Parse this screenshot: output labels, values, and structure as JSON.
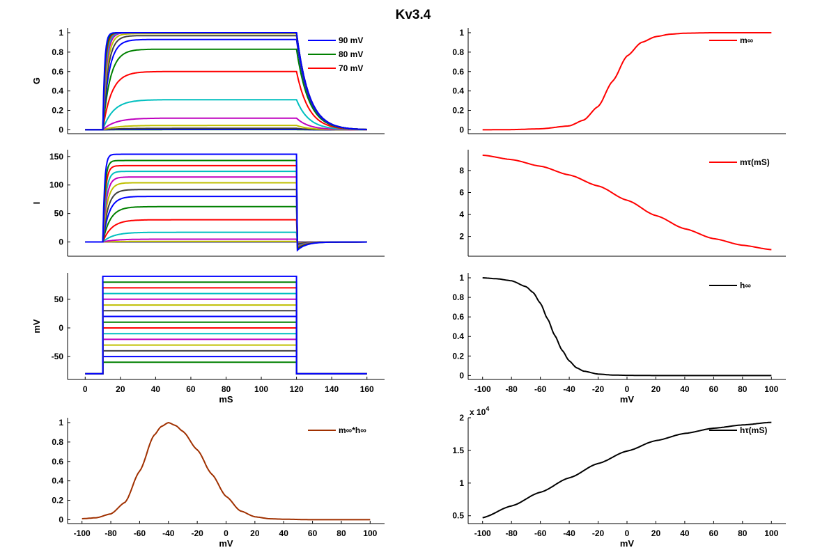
{
  "figure": {
    "title": "Kv3.4"
  },
  "chart_data": [
    {
      "id": "G",
      "type": "line",
      "title": "",
      "xlabel": "",
      "ylabel": "G",
      "xlim": [
        -10,
        170
      ],
      "ylim": [
        -0.04,
        1.05
      ],
      "yticks": [
        0,
        0.2,
        0.4,
        0.6,
        0.8,
        1
      ],
      "ytick_labels": [
        "0",
        "0.2",
        "0.4",
        "0.6",
        "0.8",
        "1"
      ],
      "xticks": [],
      "legend": {
        "placement": "top-right",
        "entries": [
          {
            "label": "90 mV",
            "color": "#0000ff"
          },
          {
            "label": "80 mV",
            "color": "#008000"
          },
          {
            "label": "70 mV",
            "color": "#ff0000"
          }
        ]
      },
      "step_on_ms": 10,
      "step_off_ms": 120,
      "end_ms": 160,
      "series": [
        {
          "name": "90 mV",
          "color": "#0000ff",
          "steady": 1.0,
          "tau_on": 1.0,
          "tau_off": 7
        },
        {
          "name": "80 mV",
          "color": "#008000",
          "steady": 1.0,
          "tau_on": 1.2,
          "tau_off": 7
        },
        {
          "name": "70 mV",
          "color": "#ff0000",
          "steady": 1.0,
          "tau_on": 1.4,
          "tau_off": 7
        },
        {
          "name": "60 mV",
          "color": "#00bfbf",
          "steady": 1.0,
          "tau_on": 1.7,
          "tau_off": 7
        },
        {
          "name": "50 mV",
          "color": "#bf00bf",
          "steady": 1.0,
          "tau_on": 2.0,
          "tau_off": 7
        },
        {
          "name": "40 mV",
          "color": "#bfbf00",
          "steady": 0.99,
          "tau_on": 2.4,
          "tau_off": 7
        },
        {
          "name": "30 mV",
          "color": "#404040",
          "steady": 0.97,
          "tau_on": 2.9,
          "tau_off": 7
        },
        {
          "name": "20 mV",
          "color": "#0000ff",
          "steady": 0.93,
          "tau_on": 3.5,
          "tau_off": 7
        },
        {
          "name": "10 mV",
          "color": "#008000",
          "steady": 0.83,
          "tau_on": 4.2,
          "tau_off": 7
        },
        {
          "name": "0 mV",
          "color": "#ff0000",
          "steady": 0.6,
          "tau_on": 5.0,
          "tau_off": 7
        },
        {
          "name": "-10 mV",
          "color": "#00bfbf",
          "steady": 0.31,
          "tau_on": 6.0,
          "tau_off": 7
        },
        {
          "name": "-20 mV",
          "color": "#bf00bf",
          "steady": 0.12,
          "tau_on": 7.0,
          "tau_off": 7
        },
        {
          "name": "-30 mV",
          "color": "#bfbf00",
          "steady": 0.045,
          "tau_on": 7.8,
          "tau_off": 7
        },
        {
          "name": "-40 mV",
          "color": "#404040",
          "steady": 0.015,
          "tau_on": 8.4,
          "tau_off": 7
        },
        {
          "name": "-50 mV",
          "color": "#0000ff",
          "steady": 0.005,
          "tau_on": 8.8,
          "tau_off": 7
        },
        {
          "name": "-60 mV",
          "color": "#008000",
          "steady": 0.002,
          "tau_on": 9.1,
          "tau_off": 7
        }
      ]
    },
    {
      "id": "I",
      "type": "line",
      "xlabel": "",
      "ylabel": "I",
      "xlim": [
        -10,
        170
      ],
      "ylim": [
        -25,
        162
      ],
      "yticks": [
        0,
        50,
        100,
        150
      ],
      "ytick_labels": [
        "0",
        "50",
        "100",
        "150"
      ],
      "xticks": [],
      "tail_min": [
        -16,
        -14,
        -12,
        -10,
        -9,
        -8,
        -7,
        -6,
        -5,
        -4,
        -3,
        -2,
        -1,
        -0.5,
        0,
        0
      ],
      "series_steady": [
        154,
        143,
        134,
        124,
        114,
        104,
        92,
        80,
        62,
        39,
        17,
        5,
        1,
        0.3,
        0,
        0
      ]
    },
    {
      "id": "V",
      "type": "line",
      "xlabel": "mS",
      "ylabel": "mV",
      "xlim": [
        -10,
        170
      ],
      "ylim": [
        -90,
        96
      ],
      "yticks": [
        -50,
        0,
        50
      ],
      "ytick_labels": [
        "-50",
        "0",
        "50"
      ],
      "xticks": [
        0,
        20,
        40,
        60,
        80,
        100,
        120,
        140,
        160
      ],
      "xtick_labels": [
        "0",
        "20",
        "40",
        "60",
        "80",
        "100",
        "120",
        "140",
        "160"
      ],
      "holding_mV": -80,
      "step_levels_mV": [
        90,
        80,
        70,
        60,
        50,
        40,
        30,
        20,
        10,
        0,
        -10,
        -20,
        -30,
        -40,
        -50,
        -60
      ]
    },
    {
      "id": "minf_hinf",
      "type": "line",
      "xlabel": "mV",
      "ylabel": "",
      "xlim": [
        -110,
        110
      ],
      "ylim": [
        -0.04,
        1.05
      ],
      "yticks": [
        0,
        0.2,
        0.4,
        0.6,
        0.8,
        1
      ],
      "ytick_labels": [
        "0",
        "0.2",
        "0.4",
        "0.6",
        "0.8",
        "1"
      ],
      "xticks": [
        -100,
        -80,
        -60,
        -40,
        -20,
        0,
        20,
        40,
        60,
        80,
        100
      ],
      "xtick_labels": [
        "-100",
        "-80",
        "-60",
        "-40",
        "-20",
        "0",
        "20",
        "40",
        "60",
        "80",
        "100"
      ],
      "legend": {
        "placement": "top-right",
        "entries": [
          {
            "label": "m∞*h∞",
            "color": "#a03000"
          }
        ]
      },
      "series": [
        {
          "name": "m∞*h∞",
          "color": "#a03000",
          "x": [
            -100,
            -90,
            -80,
            -70,
            -60,
            -50,
            -45,
            -40,
            -35,
            -30,
            -20,
            -10,
            0,
            10,
            20,
            30,
            40,
            60,
            80,
            100
          ],
          "y": [
            0.01,
            0.02,
            0.06,
            0.18,
            0.5,
            0.87,
            0.96,
            1.0,
            0.97,
            0.91,
            0.72,
            0.47,
            0.24,
            0.09,
            0.03,
            0.01,
            0.005,
            0.0,
            0.0,
            0.0
          ]
        }
      ]
    },
    {
      "id": "minf",
      "type": "line",
      "xlabel": "",
      "ylabel": "",
      "xlim": [
        -110,
        110
      ],
      "ylim": [
        -0.04,
        1.05
      ],
      "yticks": [
        0,
        0.2,
        0.4,
        0.6,
        0.8,
        1
      ],
      "ytick_labels": [
        "0",
        "0.2",
        "0.4",
        "0.6",
        "0.8",
        "1"
      ],
      "xticks": [],
      "legend": {
        "placement": "top-right",
        "entries": [
          {
            "label": "m∞",
            "color": "#ff0000"
          }
        ]
      },
      "series": [
        {
          "name": "m∞",
          "color": "#ff0000",
          "x": [
            -100,
            -80,
            -60,
            -40,
            -30,
            -20,
            -10,
            0,
            10,
            20,
            30,
            40,
            60,
            80,
            100
          ],
          "y": [
            0.0,
            0.002,
            0.01,
            0.04,
            0.1,
            0.24,
            0.5,
            0.76,
            0.9,
            0.96,
            0.985,
            0.995,
            1.0,
            1.0,
            1.0
          ]
        }
      ]
    },
    {
      "id": "mtau",
      "type": "line",
      "xlabel": "",
      "ylabel": "",
      "xlim": [
        -110,
        110
      ],
      "ylim": [
        0.2,
        9.9
      ],
      "yticks": [
        2,
        4,
        6,
        8
      ],
      "ytick_labels": [
        "2",
        "4",
        "6",
        "8"
      ],
      "xticks": [],
      "legend": {
        "placement": "top-right",
        "entries": [
          {
            "label": "mτ(mS)",
            "color": "#ff0000"
          }
        ]
      },
      "series": [
        {
          "name": "mτ(mS)",
          "color": "#ff0000",
          "x": [
            -100,
            -80,
            -60,
            -40,
            -20,
            0,
            20,
            40,
            60,
            80,
            100
          ],
          "y": [
            9.4,
            9.0,
            8.4,
            7.6,
            6.6,
            5.3,
            3.9,
            2.7,
            1.8,
            1.2,
            0.8
          ]
        }
      ]
    },
    {
      "id": "hinf",
      "type": "line",
      "xlabel": "mV",
      "ylabel": "",
      "xlim": [
        -110,
        110
      ],
      "ylim": [
        -0.04,
        1.05
      ],
      "yticks": [
        0,
        0.2,
        0.4,
        0.6,
        0.8,
        1
      ],
      "ytick_labels": [
        "0",
        "0.2",
        "0.4",
        "0.6",
        "0.8",
        "1"
      ],
      "xticks": [
        -100,
        -80,
        -60,
        -40,
        -20,
        0,
        20,
        40,
        60,
        80,
        100
      ],
      "xtick_labels": [
        "-100",
        "-80",
        "-60",
        "-40",
        "-20",
        "0",
        "20",
        "40",
        "60",
        "80",
        "100"
      ],
      "legend": {
        "placement": "top-right",
        "entries": [
          {
            "label": "h∞",
            "color": "#000000"
          }
        ]
      },
      "series": [
        {
          "name": "h∞",
          "color": "#000000",
          "x": [
            -100,
            -90,
            -80,
            -70,
            -65,
            -60,
            -55,
            -50,
            -45,
            -40,
            -35,
            -30,
            -20,
            -10,
            0,
            20,
            50,
            100
          ],
          "y": [
            1.0,
            0.99,
            0.97,
            0.91,
            0.85,
            0.74,
            0.58,
            0.41,
            0.26,
            0.15,
            0.08,
            0.045,
            0.015,
            0.005,
            0.002,
            0.0,
            0.0,
            0.0
          ]
        }
      ]
    },
    {
      "id": "htau",
      "type": "line",
      "xlabel": "mV",
      "ylabel": "",
      "xlim": [
        -110,
        110
      ],
      "ylim": [
        0.38,
        2.0
      ],
      "y_multiplier": "x 10^4",
      "yticks": [
        0.5,
        1,
        1.5,
        2
      ],
      "ytick_labels": [
        "0.5",
        "1",
        "1.5",
        "2"
      ],
      "xticks": [
        -100,
        -80,
        -60,
        -40,
        -20,
        0,
        20,
        40,
        60,
        80,
        100
      ],
      "xtick_labels": [
        "-100",
        "-80",
        "-60",
        "-40",
        "-20",
        "0",
        "20",
        "40",
        "60",
        "80",
        "100"
      ],
      "legend": {
        "placement": "top-right",
        "entries": [
          {
            "label": "hτ(mS)",
            "color": "#000000"
          }
        ]
      },
      "series": [
        {
          "name": "hτ(mS)",
          "color": "#000000",
          "x": [
            -100,
            -80,
            -60,
            -40,
            -20,
            0,
            20,
            40,
            60,
            80,
            100
          ],
          "y": [
            0.47,
            0.65,
            0.86,
            1.08,
            1.3,
            1.49,
            1.65,
            1.76,
            1.84,
            1.89,
            1.93
          ]
        }
      ]
    }
  ]
}
